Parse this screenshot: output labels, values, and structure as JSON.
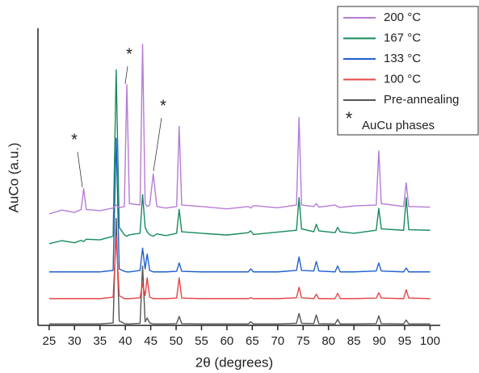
{
  "chart_data": {
    "type": "line",
    "x_label": "2θ (degrees)",
    "y_label": "AuCo (a.u.)",
    "x": [
      25,
      27.5,
      30,
      31.3,
      31.8,
      32.3,
      35,
      37.6,
      38.2,
      38.8,
      39.8,
      40.3,
      40.8,
      42.9,
      43.4,
      43.9,
      44.3,
      44.8,
      45.5,
      46.2,
      48,
      50.1,
      50.6,
      51.1,
      55,
      60,
      64.2,
      64.7,
      65.2,
      70,
      73.7,
      74.2,
      74.7,
      77.1,
      77.6,
      78.1,
      81.3,
      81.8,
      82.3,
      85,
      89.4,
      89.9,
      90.4,
      94.8,
      95.3,
      95.8,
      100
    ],
    "series": [
      {
        "name": "200 °C",
        "color": "#b57bd6",
        "values": [
          37.5,
          38.8,
          38,
          39,
          46,
          39,
          38.6,
          39.5,
          40.5,
          39.6,
          40,
          81,
          41,
          40.5,
          94.6,
          41,
          40,
          40.5,
          51,
          40,
          39.5,
          40,
          67,
          40.5,
          40,
          39.2,
          40,
          39.5,
          40.3,
          39.6,
          40.5,
          70,
          40.5,
          40,
          41,
          39.8,
          40.5,
          40,
          39.7,
          40.2,
          40.5,
          58.7,
          41,
          40,
          48,
          40,
          39.8
        ]
      },
      {
        "name": "167 °C",
        "color": "#168a5a",
        "values": [
          27.5,
          28.5,
          27.8,
          28.6,
          28.2,
          29,
          28.8,
          30,
          86,
          33,
          30.5,
          30,
          30.5,
          31,
          44,
          33,
          31.5,
          30.5,
          30,
          30.8,
          30.2,
          31,
          39,
          31.5,
          31,
          30.4,
          31.2,
          31.8,
          30.6,
          31.4,
          32,
          43,
          32.5,
          31.5,
          34,
          31.8,
          31.2,
          33,
          31.5,
          31,
          32,
          39.4,
          32.5,
          32,
          43,
          32.2,
          32
        ]
      },
      {
        "name": "133 °C",
        "color": "#1f5fcf",
        "values": [
          18,
          18,
          18,
          18,
          18,
          18,
          18,
          18.5,
          63,
          19,
          18.2,
          18,
          18,
          18.5,
          26,
          19,
          24,
          18.5,
          18,
          18,
          18,
          18.2,
          21,
          18.2,
          18,
          18,
          18,
          19,
          18,
          18,
          18.5,
          23,
          18.5,
          18.3,
          21.5,
          18.3,
          18,
          20,
          18,
          18,
          18.3,
          21,
          18.3,
          18,
          19.3,
          18,
          18
        ]
      },
      {
        "name": "100 °C",
        "color": "#e84545",
        "values": [
          9,
          9,
          9,
          9,
          9,
          9,
          9,
          9.5,
          30,
          10,
          9,
          9,
          9,
          9.3,
          14,
          10,
          16,
          9.5,
          9,
          9,
          9,
          9.2,
          16,
          9.2,
          9,
          9,
          9,
          9.3,
          9,
          9,
          9.3,
          12.8,
          9.3,
          9,
          10.5,
          9,
          9,
          10.8,
          9,
          9,
          9.2,
          11,
          9.2,
          9,
          12,
          9.2,
          9
        ]
      },
      {
        "name": "Pre-annealing",
        "color": "#555555",
        "values": [
          0.5,
          0.5,
          0.5,
          0.5,
          0.5,
          0.5,
          0.5,
          0.8,
          36,
          1.5,
          0.6,
          0.5,
          0.5,
          0.7,
          20,
          1.2,
          2.5,
          0.8,
          0.5,
          0.5,
          0.5,
          0.6,
          3,
          0.6,
          0.5,
          0.5,
          0.5,
          1.2,
          0.5,
          0.5,
          0.7,
          4,
          0.7,
          0.6,
          3.5,
          0.6,
          0.5,
          2,
          0.5,
          0.5,
          0.6,
          3.2,
          0.6,
          0.5,
          1.8,
          0.5,
          0.5
        ]
      }
    ],
    "legend_note": {
      "marker": "*",
      "text": "AuCu phases"
    },
    "annotations": [
      "*",
      "*",
      "*"
    ],
    "xlim": [
      22.8,
      102
    ],
    "xticks": [
      25,
      30,
      35,
      40,
      45,
      50,
      55,
      60,
      65,
      70,
      75,
      80,
      85,
      90,
      95,
      100
    ],
    "ylim": [
      0,
      100
    ],
    "legend": "top-right"
  }
}
